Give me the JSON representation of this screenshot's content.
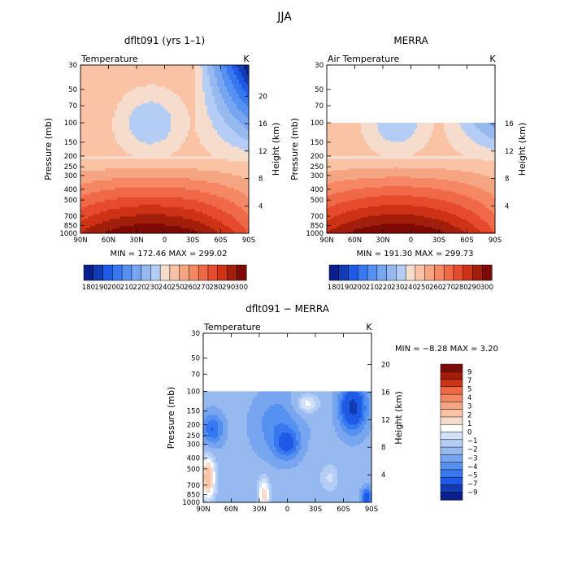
{
  "page_title": "JJA",
  "colors": {
    "seq": [
      "#0a1e8c",
      "#123cb4",
      "#1e5ae6",
      "#3778f0",
      "#5591f0",
      "#78a5f0",
      "#96b9f0",
      "#b4cdf5",
      "#f5dccd",
      "#fac3a5",
      "#f5a582",
      "#f58764",
      "#f06946",
      "#e64b2d",
      "#cd3214",
      "#a01e0a",
      "#7d0a05"
    ],
    "diff": [
      "#0a1e8c",
      "#123cb4",
      "#1e5ae6",
      "#3778f0",
      "#5591f0",
      "#78a5f0",
      "#96b9f0",
      "#b4cdf5",
      "#d2e1fa",
      "#ffffff",
      "#f5dccd",
      "#fac3a5",
      "#f5a582",
      "#f58764",
      "#f06946",
      "#cd3214",
      "#a01e0a",
      "#7d0a05"
    ]
  },
  "chart_data": [
    {
      "type": "heatmap",
      "title": "dflt091 (yrs 1–1)",
      "variable": "Temperature",
      "units": "K",
      "ylabel": "Pressure (mb)",
      "ylabel_right": "Height (km)",
      "x_ticks": [
        "90N",
        "60N",
        "30N",
        "0",
        "30S",
        "60S",
        "90S"
      ],
      "y_ticks": [
        "30",
        "50",
        "70",
        "100",
        "150",
        "200",
        "250",
        "300",
        "400",
        "500",
        "700",
        "850",
        "1000"
      ],
      "height_ticks": [
        "20",
        "16",
        "12",
        "8",
        "4"
      ],
      "stats": "MIN = 172.46   MAX = 299.02",
      "colorbar_labels": [
        "180",
        "190",
        "200",
        "210",
        "220",
        "230",
        "240",
        "250",
        "260",
        "270",
        "280",
        "290",
        "300"
      ],
      "data_top_pressure": 30,
      "min": 172.46,
      "max": 299.02
    },
    {
      "type": "heatmap",
      "title": "MERRA",
      "variable": "Air Temperature",
      "units": "K",
      "ylabel": "Pressure (mb)",
      "ylabel_right": "Height (km)",
      "x_ticks": [
        "90N",
        "60N",
        "30N",
        "0",
        "30S",
        "60S",
        "90S"
      ],
      "y_ticks": [
        "30",
        "50",
        "70",
        "100",
        "150",
        "200",
        "250",
        "300",
        "400",
        "500",
        "700",
        "850",
        "1000"
      ],
      "height_ticks": [
        "16",
        "12",
        "8",
        "4"
      ],
      "stats": "MIN = 191.30   MAX = 299.73",
      "colorbar_labels": [
        "180",
        "190",
        "200",
        "210",
        "220",
        "230",
        "240",
        "250",
        "260",
        "270",
        "280",
        "290",
        "300"
      ],
      "data_top_pressure": 100,
      "min": 191.3,
      "max": 299.73
    },
    {
      "type": "heatmap",
      "title": "dflt091 − MERRA",
      "variable": "Temperature",
      "units": "K",
      "ylabel": "Pressure (mb)",
      "ylabel_right": "Height (km)",
      "x_ticks": [
        "90N",
        "60N",
        "30N",
        "0",
        "30S",
        "60S",
        "90S"
      ],
      "y_ticks": [
        "30",
        "50",
        "70",
        "100",
        "150",
        "200",
        "250",
        "300",
        "400",
        "500",
        "700",
        "850",
        "1000"
      ],
      "height_ticks": [
        "20",
        "16",
        "12",
        "8",
        "4"
      ],
      "stats": "MIN =   −8.28   MAX =    3.20",
      "colorbar_labels": [
        "9",
        "7",
        "5",
        "4",
        "3",
        "2",
        "1",
        "0",
        "−1",
        "−2",
        "−3",
        "−4",
        "−5",
        "−7",
        "−9"
      ],
      "data_top_pressure": 100,
      "min": -8.28,
      "max": 3.2
    }
  ]
}
